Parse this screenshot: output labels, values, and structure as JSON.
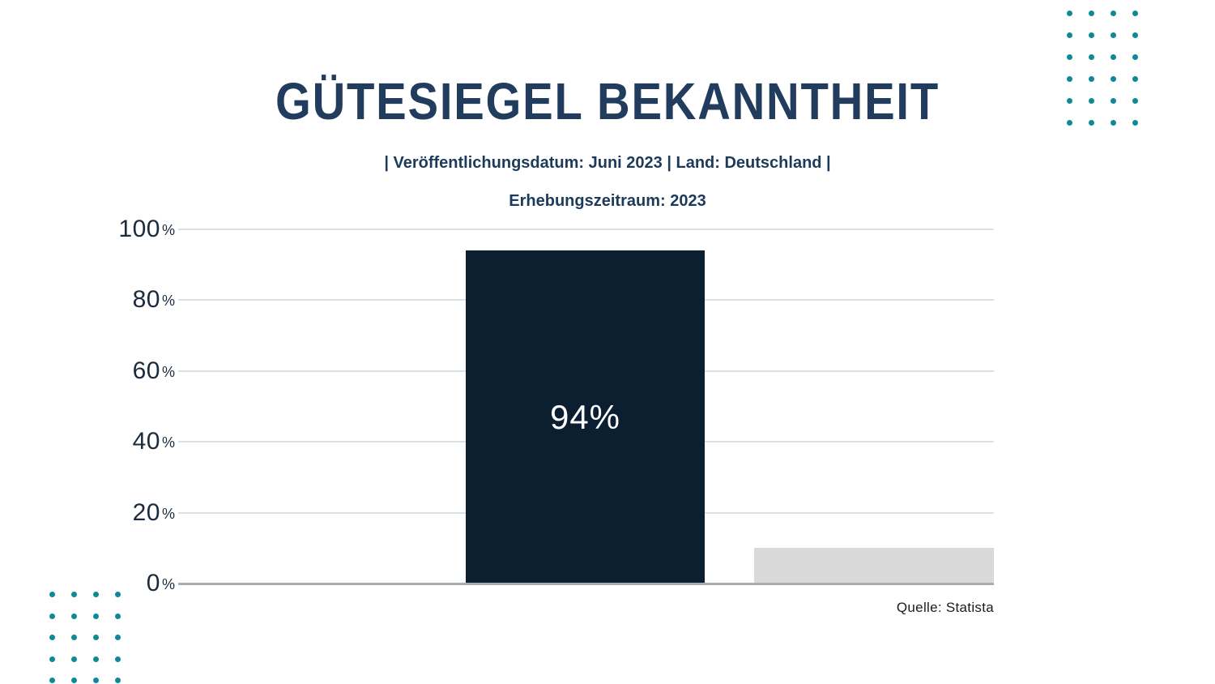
{
  "page": {
    "title": "GÜTESIEGEL BEKANNTHEIT",
    "subtitle_line1": "| Veröffentlichungsdatum: Juni 2023 | Land: Deutschland |",
    "subtitle_line2": "Erhebungszeitraum: 2023",
    "source": "Quelle: Statista"
  },
  "chart_data": {
    "type": "bar",
    "title": "GÜTESIEGEL BEKANNTHEIT",
    "categories": [
      "",
      ""
    ],
    "values": [
      94,
      10
    ],
    "bar_labels": [
      "94%",
      ""
    ],
    "bar_colors": [
      "#0b1f31",
      "#d9d9d9"
    ],
    "ylim": [
      0,
      100
    ],
    "yticks": [
      0,
      20,
      40,
      60,
      80,
      100
    ],
    "ytick_suffix": "%",
    "grid": true,
    "legend_position": "none"
  },
  "colors": {
    "title": "#223c5e",
    "subtitle": "#1c3a5a",
    "tick_label": "#1b2b3d",
    "gridline": "#dce1e6",
    "axis_line": "#a5aeb5",
    "bar_dark": "#0b1f31",
    "bar_light": "#d9d9d9",
    "bar_label": "#ffffff",
    "source_text": "#1b1b1b",
    "dot_teal": "#0e8a96"
  },
  "decor": {
    "dot_color": "#0e8a96",
    "top_right_grid": {
      "rows": 6,
      "cols": 4
    },
    "bottom_left_grid": {
      "rows": 5,
      "cols": 4
    }
  }
}
